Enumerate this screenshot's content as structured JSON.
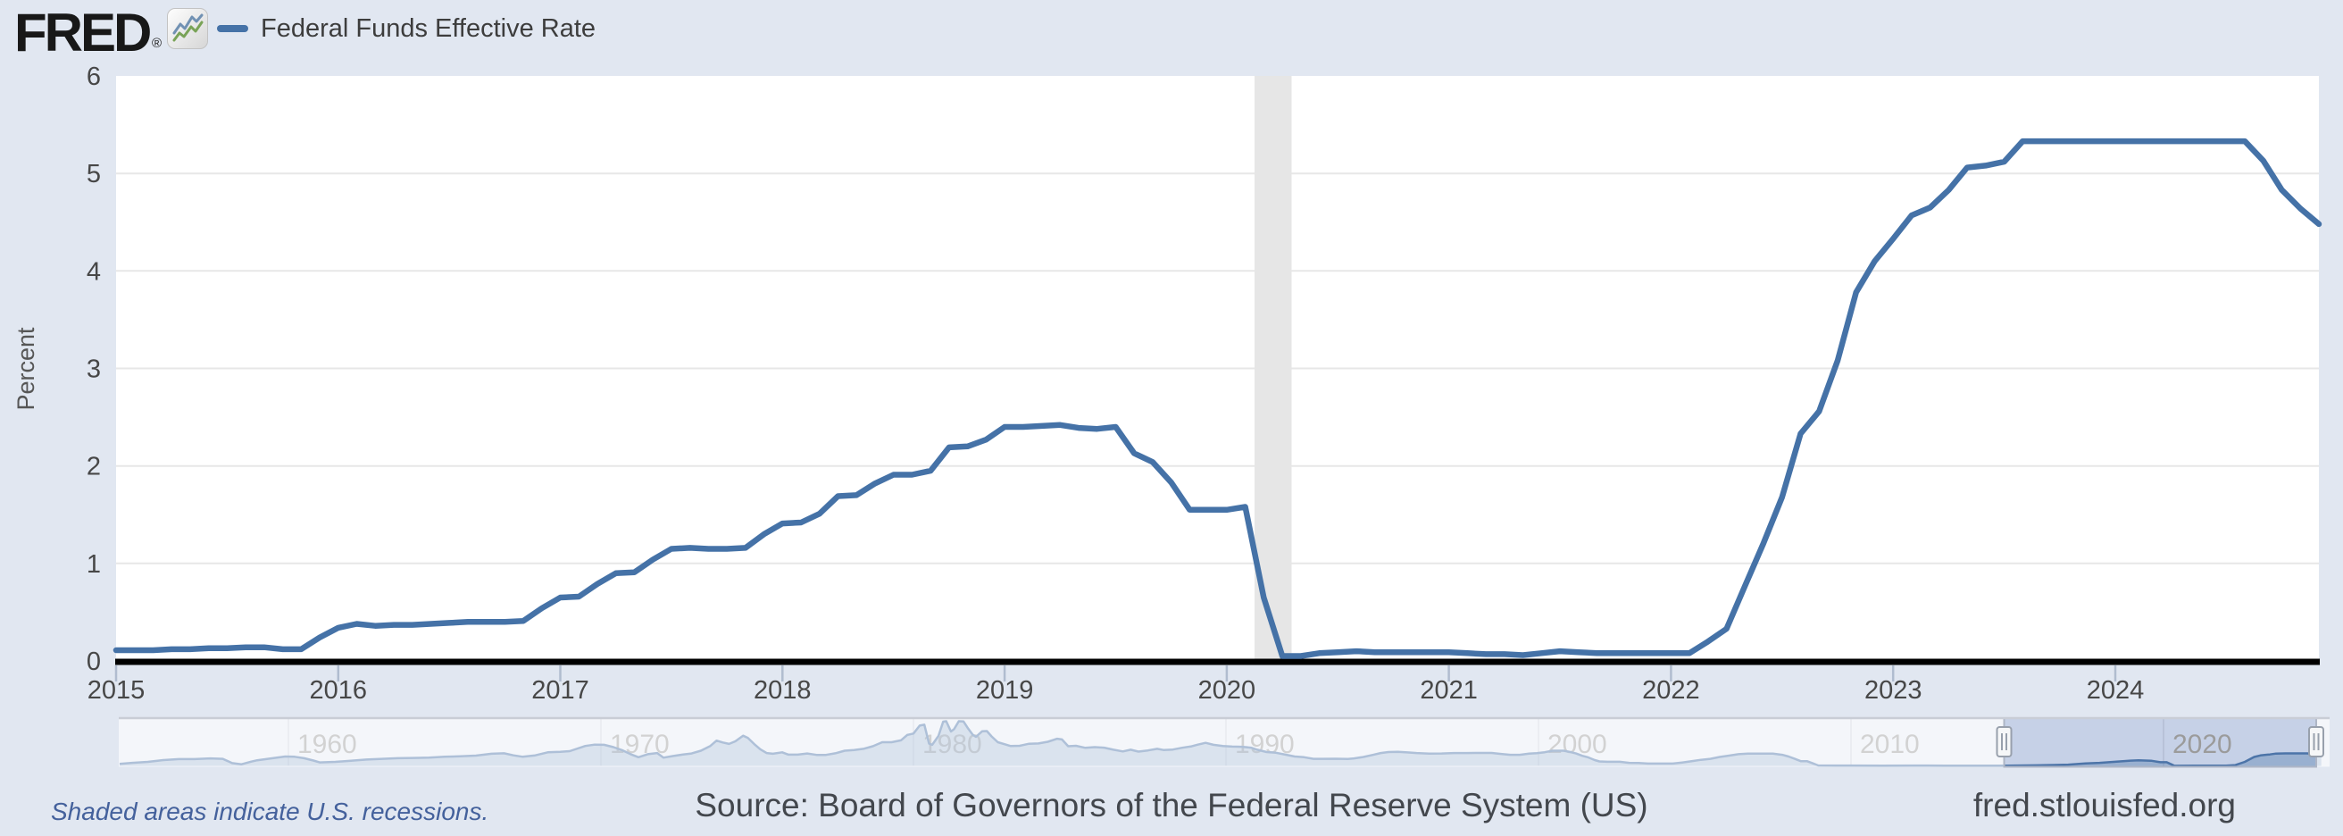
{
  "header": {
    "logo_text": "FRED",
    "registered_mark": "®",
    "logo_icon": "fred-sparkline-icon",
    "legend_label": "Federal Funds Effective Rate",
    "legend_color": "#4572a7"
  },
  "chart_data": [
    {
      "type": "line",
      "name": "Federal Funds Effective Rate",
      "ylabel": "Percent",
      "ylim": [
        0,
        6
      ],
      "yticks": [
        0,
        1,
        2,
        3,
        4,
        5,
        6
      ],
      "xticks": [
        2015,
        2016,
        2017,
        2018,
        2019,
        2020,
        2021,
        2022,
        2023,
        2024
      ],
      "grid": true,
      "line_color": "#4572a7",
      "recession_band_color": "#e6e6e6",
      "recession_bands": [
        {
          "start_year": 2020.125,
          "end_year": 2020.292
        }
      ],
      "frequency": "monthly",
      "x_start": "2015-01",
      "x_end": "2024-12",
      "values": [
        0.11,
        0.11,
        0.11,
        0.12,
        0.12,
        0.13,
        0.13,
        0.14,
        0.14,
        0.12,
        0.12,
        0.24,
        0.34,
        0.38,
        0.36,
        0.37,
        0.37,
        0.38,
        0.39,
        0.4,
        0.4,
        0.4,
        0.41,
        0.54,
        0.65,
        0.66,
        0.79,
        0.9,
        0.91,
        1.04,
        1.15,
        1.16,
        1.15,
        1.15,
        1.16,
        1.3,
        1.41,
        1.42,
        1.51,
        1.69,
        1.7,
        1.82,
        1.91,
        1.91,
        1.95,
        2.19,
        2.2,
        2.27,
        2.4,
        2.4,
        2.41,
        2.42,
        2.39,
        2.38,
        2.4,
        2.13,
        2.04,
        1.83,
        1.55,
        1.55,
        1.55,
        1.58,
        0.65,
        0.05,
        0.05,
        0.08,
        0.09,
        0.1,
        0.09,
        0.09,
        0.09,
        0.09,
        0.09,
        0.08,
        0.07,
        0.07,
        0.06,
        0.08,
        0.1,
        0.09,
        0.08,
        0.08,
        0.08,
        0.08,
        0.08,
        0.08,
        0.2,
        0.33,
        0.77,
        1.21,
        1.68,
        2.33,
        2.56,
        3.08,
        3.78,
        4.1,
        4.33,
        4.57,
        4.65,
        4.83,
        5.06,
        5.08,
        5.12,
        5.33,
        5.33,
        5.33,
        5.33,
        5.33,
        5.33,
        5.33,
        5.33,
        5.33,
        5.33,
        5.33,
        5.33,
        5.33,
        5.13,
        4.83,
        4.64,
        4.48
      ]
    },
    {
      "type": "area",
      "role": "range-selector-navigator",
      "name": "Federal Funds Effective Rate (full history navigator)",
      "xticks": [
        1960,
        1970,
        1980,
        1990,
        2000,
        2010,
        2020
      ],
      "selected_range_years": [
        2014.9,
        2025.0
      ],
      "ylim": [
        0,
        20
      ],
      "points": [
        [
          1954.6,
          0.85
        ],
        [
          1955,
          1.3
        ],
        [
          1955.5,
          1.7
        ],
        [
          1956,
          2.5
        ],
        [
          1956.5,
          2.9
        ],
        [
          1957,
          2.9
        ],
        [
          1957.5,
          3.2
        ],
        [
          1957.9,
          3.0
        ],
        [
          1958.2,
          1.2
        ],
        [
          1958.5,
          0.7
        ],
        [
          1958.8,
          1.8
        ],
        [
          1959,
          2.4
        ],
        [
          1959.5,
          3.3
        ],
        [
          1959.9,
          4.0
        ],
        [
          1960.2,
          3.9
        ],
        [
          1960.5,
          3.3
        ],
        [
          1960.8,
          2.3
        ],
        [
          1961,
          1.5
        ],
        [
          1961.5,
          1.7
        ],
        [
          1962,
          2.2
        ],
        [
          1962.5,
          2.7
        ],
        [
          1963,
          3.0
        ],
        [
          1963.5,
          3.3
        ],
        [
          1964,
          3.4
        ],
        [
          1964.5,
          3.5
        ],
        [
          1965,
          3.9
        ],
        [
          1965.5,
          4.1
        ],
        [
          1966,
          4.4
        ],
        [
          1966.5,
          5.2
        ],
        [
          1966.9,
          5.4
        ],
        [
          1967.2,
          4.5
        ],
        [
          1967.5,
          3.9
        ],
        [
          1967.9,
          4.5
        ],
        [
          1968.3,
          5.8
        ],
        [
          1968.7,
          6.0
        ],
        [
          1969,
          6.3
        ],
        [
          1969.5,
          8.5
        ],
        [
          1969.8,
          9.1
        ],
        [
          1970.1,
          9.0
        ],
        [
          1970.4,
          8.0
        ],
        [
          1970.7,
          6.6
        ],
        [
          1970.95,
          5.0
        ],
        [
          1971.2,
          3.7
        ],
        [
          1971.5,
          5.0
        ],
        [
          1971.8,
          5.5
        ],
        [
          1972,
          3.5
        ],
        [
          1972.3,
          4.2
        ],
        [
          1972.6,
          4.8
        ],
        [
          1972.9,
          5.3
        ],
        [
          1973.2,
          6.5
        ],
        [
          1973.5,
          8.5
        ],
        [
          1973.7,
          10.8
        ],
        [
          1973.9,
          10.0
        ],
        [
          1974.1,
          9.4
        ],
        [
          1974.3,
          10.5
        ],
        [
          1974.55,
          12.9
        ],
        [
          1974.7,
          12.0
        ],
        [
          1974.9,
          9.4
        ],
        [
          1975.1,
          7.1
        ],
        [
          1975.3,
          5.5
        ],
        [
          1975.5,
          5.2
        ],
        [
          1975.8,
          5.8
        ],
        [
          1976,
          4.8
        ],
        [
          1976.3,
          4.8
        ],
        [
          1976.6,
          5.3
        ],
        [
          1976.9,
          4.7
        ],
        [
          1977.2,
          4.7
        ],
        [
          1977.5,
          5.4
        ],
        [
          1977.8,
          6.5
        ],
        [
          1978.1,
          6.8
        ],
        [
          1978.4,
          7.3
        ],
        [
          1978.7,
          8.4
        ],
        [
          1979,
          10.1
        ],
        [
          1979.3,
          10.1
        ],
        [
          1979.6,
          10.9
        ],
        [
          1979.8,
          13.2
        ],
        [
          1980,
          13.8
        ],
        [
          1980.2,
          17.2
        ],
        [
          1980.35,
          17.6
        ],
        [
          1980.5,
          9.5
        ],
        [
          1980.6,
          9.0
        ],
        [
          1980.8,
          12.8
        ],
        [
          1980.95,
          18.9
        ],
        [
          1981.05,
          19.1
        ],
        [
          1981.2,
          14.7
        ],
        [
          1981.3,
          15.7
        ],
        [
          1981.45,
          19.1
        ],
        [
          1981.6,
          19.0
        ],
        [
          1981.75,
          15.9
        ],
        [
          1981.9,
          13.3
        ],
        [
          1982,
          12.4
        ],
        [
          1982.2,
          14.8
        ],
        [
          1982.35,
          14.9
        ],
        [
          1982.5,
          12.6
        ],
        [
          1982.7,
          10.1
        ],
        [
          1982.9,
          9.3
        ],
        [
          1983.1,
          8.5
        ],
        [
          1983.4,
          8.6
        ],
        [
          1983.7,
          9.45
        ],
        [
          1984,
          9.6
        ],
        [
          1984.3,
          10.3
        ],
        [
          1984.6,
          11.6
        ],
        [
          1984.75,
          11.3
        ],
        [
          1984.95,
          8.4
        ],
        [
          1985.2,
          8.6
        ],
        [
          1985.5,
          7.7
        ],
        [
          1985.8,
          8.0
        ],
        [
          1986.1,
          7.8
        ],
        [
          1986.4,
          6.9
        ],
        [
          1986.7,
          6.2
        ],
        [
          1986.95,
          6.9
        ],
        [
          1987.2,
          6.1
        ],
        [
          1987.5,
          6.6
        ],
        [
          1987.8,
          7.3
        ],
        [
          1988,
          6.8
        ],
        [
          1988.3,
          7.0
        ],
        [
          1988.6,
          7.75
        ],
        [
          1988.9,
          8.35
        ],
        [
          1989.1,
          9.1
        ],
        [
          1989.35,
          9.85
        ],
        [
          1989.6,
          9.0
        ],
        [
          1989.9,
          8.5
        ],
        [
          1990.2,
          8.25
        ],
        [
          1990.5,
          8.15
        ],
        [
          1990.8,
          7.8
        ],
        [
          1991,
          6.9
        ],
        [
          1991.3,
          5.9
        ],
        [
          1991.6,
          5.6
        ],
        [
          1991.9,
          4.8
        ],
        [
          1992.2,
          4.0
        ],
        [
          1992.5,
          3.7
        ],
        [
          1992.8,
          3.0
        ],
        [
          1993.1,
          3.0
        ],
        [
          1993.5,
          3.05
        ],
        [
          1993.9,
          2.95
        ],
        [
          1994.1,
          3.2
        ],
        [
          1994.4,
          3.8
        ],
        [
          1994.7,
          4.7
        ],
        [
          1994.95,
          5.5
        ],
        [
          1995.2,
          5.9
        ],
        [
          1995.5,
          6.0
        ],
        [
          1995.8,
          5.75
        ],
        [
          1996.1,
          5.5
        ],
        [
          1996.5,
          5.25
        ],
        [
          1996.9,
          5.3
        ],
        [
          1997.3,
          5.5
        ],
        [
          1997.7,
          5.5
        ],
        [
          1998.1,
          5.55
        ],
        [
          1998.5,
          5.55
        ],
        [
          1998.8,
          5.1
        ],
        [
          1999.1,
          4.75
        ],
        [
          1999.4,
          4.75
        ],
        [
          1999.7,
          5.25
        ],
        [
          1999.95,
          5.45
        ],
        [
          2000.2,
          5.85
        ],
        [
          2000.45,
          6.5
        ],
        [
          2000.8,
          6.5
        ],
        [
          2001,
          6.0
        ],
        [
          2001.2,
          5.3
        ],
        [
          2001.4,
          4.3
        ],
        [
          2001.6,
          3.6
        ],
        [
          2001.8,
          2.5
        ],
        [
          2001.95,
          1.9
        ],
        [
          2002.2,
          1.75
        ],
        [
          2002.6,
          1.75
        ],
        [
          2002.9,
          1.3
        ],
        [
          2003.2,
          1.25
        ],
        [
          2003.5,
          1.0
        ],
        [
          2003.9,
          1.0
        ],
        [
          2004.3,
          1.0
        ],
        [
          2004.6,
          1.45
        ],
        [
          2004.9,
          2.0
        ],
        [
          2005.2,
          2.6
        ],
        [
          2005.5,
          3.0
        ],
        [
          2005.8,
          3.8
        ],
        [
          2006.1,
          4.4
        ],
        [
          2006.4,
          5.0
        ],
        [
          2006.7,
          5.25
        ],
        [
          2007.1,
          5.25
        ],
        [
          2007.5,
          5.25
        ],
        [
          2007.8,
          4.75
        ],
        [
          2008,
          4.0
        ],
        [
          2008.2,
          3.0
        ],
        [
          2008.4,
          2.0
        ],
        [
          2008.6,
          2.0
        ],
        [
          2008.8,
          1.0
        ],
        [
          2008.95,
          0.2
        ],
        [
          2009.5,
          0.16
        ],
        [
          2010,
          0.15
        ],
        [
          2011,
          0.1
        ],
        [
          2012,
          0.14
        ],
        [
          2013,
          0.12
        ],
        [
          2014,
          0.09
        ],
        [
          2015,
          0.12
        ],
        [
          2015.9,
          0.24
        ],
        [
          2016.5,
          0.39
        ],
        [
          2016.95,
          0.54
        ],
        [
          2017.5,
          1.05
        ],
        [
          2017.95,
          1.3
        ],
        [
          2018.5,
          1.85
        ],
        [
          2018.95,
          2.27
        ],
        [
          2019.2,
          2.4
        ],
        [
          2019.6,
          2.2
        ],
        [
          2019.9,
          1.55
        ],
        [
          2020.1,
          1.58
        ],
        [
          2020.25,
          0.65
        ],
        [
          2020.35,
          0.05
        ],
        [
          2021,
          0.08
        ],
        [
          2022,
          0.08
        ],
        [
          2022.3,
          0.33
        ],
        [
          2022.6,
          1.7
        ],
        [
          2022.9,
          3.8
        ],
        [
          2023.1,
          4.45
        ],
        [
          2023.4,
          4.9
        ],
        [
          2023.6,
          5.25
        ],
        [
          2023.9,
          5.33
        ],
        [
          2024.3,
          5.33
        ],
        [
          2024.6,
          5.33
        ],
        [
          2024.75,
          5.13
        ],
        [
          2024.92,
          4.6
        ],
        [
          2025.05,
          4.48
        ]
      ]
    }
  ],
  "footer": {
    "recession_note": "Shaded areas indicate U.S. recessions.",
    "source": "Source: Board of Governors of the Federal Reserve System (US)",
    "site": "fred.stlouisfed.org"
  }
}
